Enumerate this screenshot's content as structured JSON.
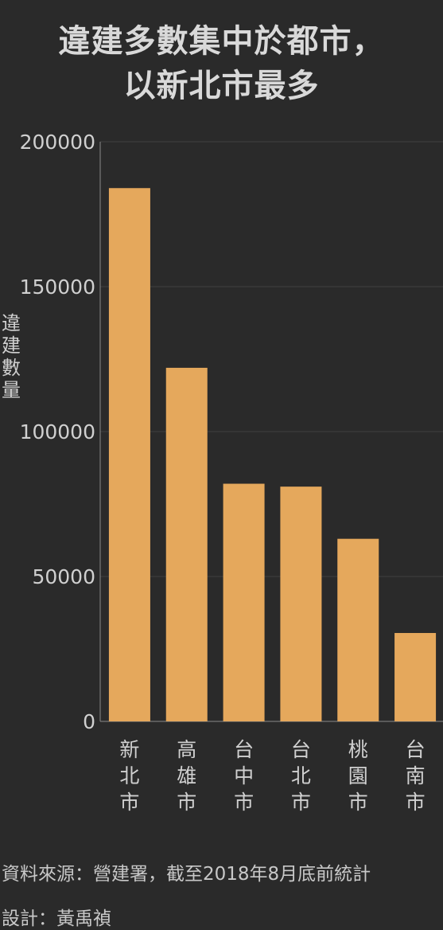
{
  "title_lines": [
    "違建多數集中於都市，",
    "以新北市最多"
  ],
  "footer": {
    "source": "資料來源：營建署，截至2018年8月底前統計",
    "credit": "設計：黃禹禎"
  },
  "colors": {
    "background": "#2a2a2a",
    "bar": "#e5a85c",
    "grid": "#404040",
    "axis": "#8a8a8a",
    "text": "#d0d0d0"
  },
  "chart_data": {
    "type": "bar",
    "title": "違建多數集中於都市，以新北市最多",
    "xlabel": "",
    "ylabel": "違建數量",
    "categories": [
      "新北市",
      "高雄市",
      "台中市",
      "台北市",
      "桃園市",
      "台南市"
    ],
    "values": [
      184000,
      122000,
      82000,
      81000,
      63000,
      30500
    ],
    "ylim": [
      0,
      200000
    ],
    "yticks": [
      0,
      50000,
      100000,
      150000,
      200000
    ],
    "grid": true,
    "legend": "none"
  }
}
